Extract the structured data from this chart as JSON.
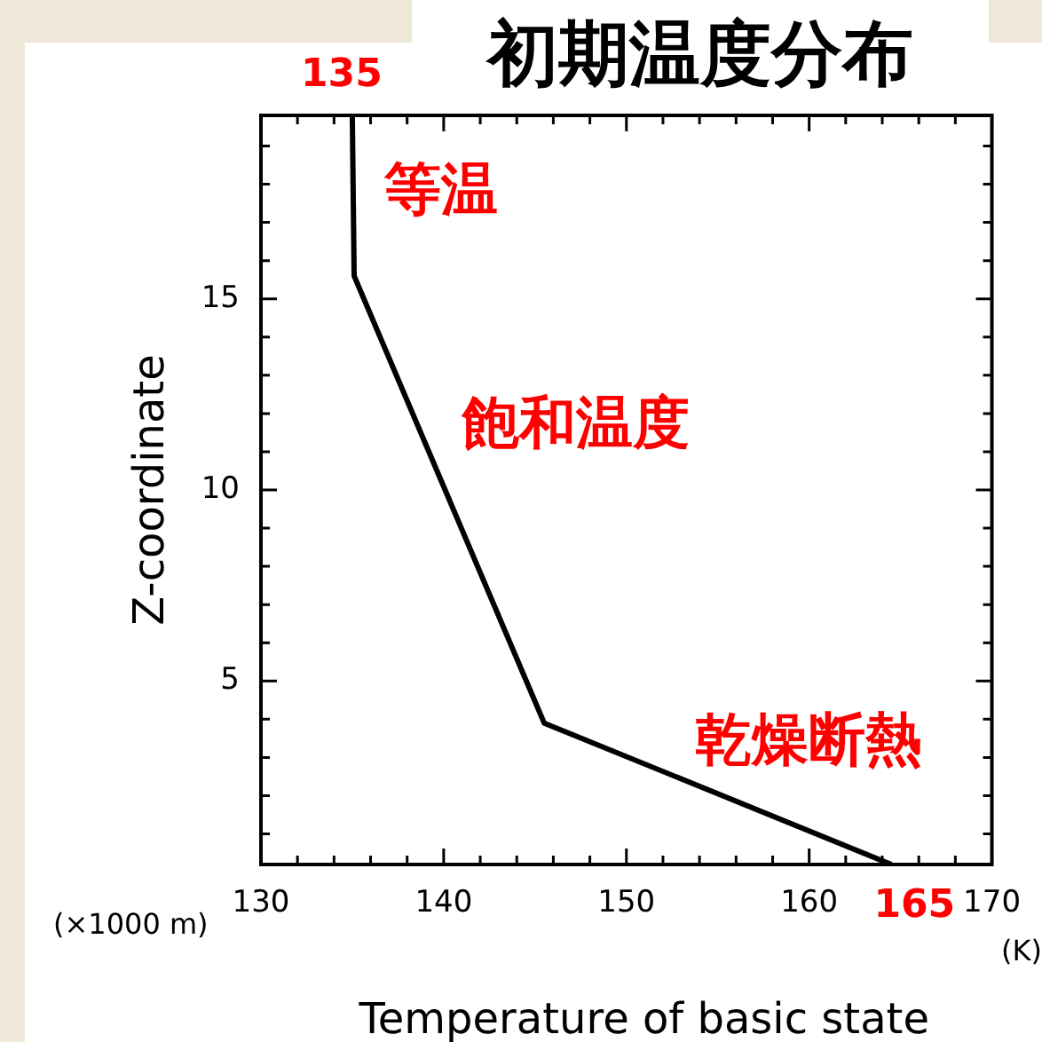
{
  "chart_data": {
    "type": "line",
    "title": "初期温度分布",
    "xlabel": "Temperature of basic state",
    "ylabel": "Z-coordinate",
    "x": [
      164.5,
      145.5,
      135.1,
      135
    ],
    "series": [
      {
        "color": "#000000",
        "values": [
          0.2,
          3.9,
          15.6,
          19.8
        ]
      }
    ],
    "xlim": [
      130,
      170
    ],
    "ylim": [
      0.2,
      19.8
    ],
    "xticks": [
      130,
      {
        "value": 132,
        "label": null
      },
      {
        "value": 134,
        "label": null
      },
      {
        "value": 136,
        "label": null
      },
      {
        "value": 138,
        "label": null
      },
      140,
      {
        "value": 142,
        "label": null
      },
      {
        "value": 144,
        "label": null
      },
      {
        "value": 146,
        "label": null
      },
      {
        "value": 148,
        "label": null
      },
      150,
      {
        "value": 152,
        "label": null
      },
      {
        "value": 154,
        "label": null
      },
      {
        "value": 156,
        "label": null
      },
      {
        "value": 158,
        "label": null
      },
      160,
      {
        "value": 162,
        "label": null
      },
      {
        "value": 164,
        "label": null
      },
      {
        "value": 166,
        "label": null
      },
      {
        "value": 168,
        "label": null
      },
      170
    ],
    "yticks": [
      {
        "value": 1,
        "label": null
      },
      {
        "value": 2,
        "label": null
      },
      {
        "value": 3,
        "label": null
      },
      {
        "value": 4,
        "label": null
      },
      5,
      {
        "value": 6,
        "label": null
      },
      {
        "value": 7,
        "label": null
      },
      {
        "value": 8,
        "label": null
      },
      {
        "value": 9,
        "label": null
      },
      10,
      {
        "value": 11,
        "label": null
      },
      {
        "value": 12,
        "label": null
      },
      {
        "value": 13,
        "label": null
      },
      {
        "value": 14,
        "label": null
      },
      15,
      {
        "value": 16,
        "label": null
      },
      {
        "value": 17,
        "label": null
      },
      {
        "value": 18,
        "label": null
      },
      {
        "value": 19,
        "label": null
      }
    ],
    "marker": "none",
    "line_style": "solid",
    "legend": false,
    "annotations": [
      "(×1000 m)",
      "(K)",
      {
        "text": "135",
        "x": 135,
        "y": 19.8
      },
      {
        "text": "165",
        "x": 164.5,
        "y": 0.2
      },
      {
        "text": "等温",
        "x": 135,
        "y": 17
      },
      {
        "text": "飽和温度",
        "x": 139.3,
        "y": 10.9
      },
      {
        "text": "乾燥断熱",
        "x": 152,
        "y": 2.6
      }
    ]
  }
}
